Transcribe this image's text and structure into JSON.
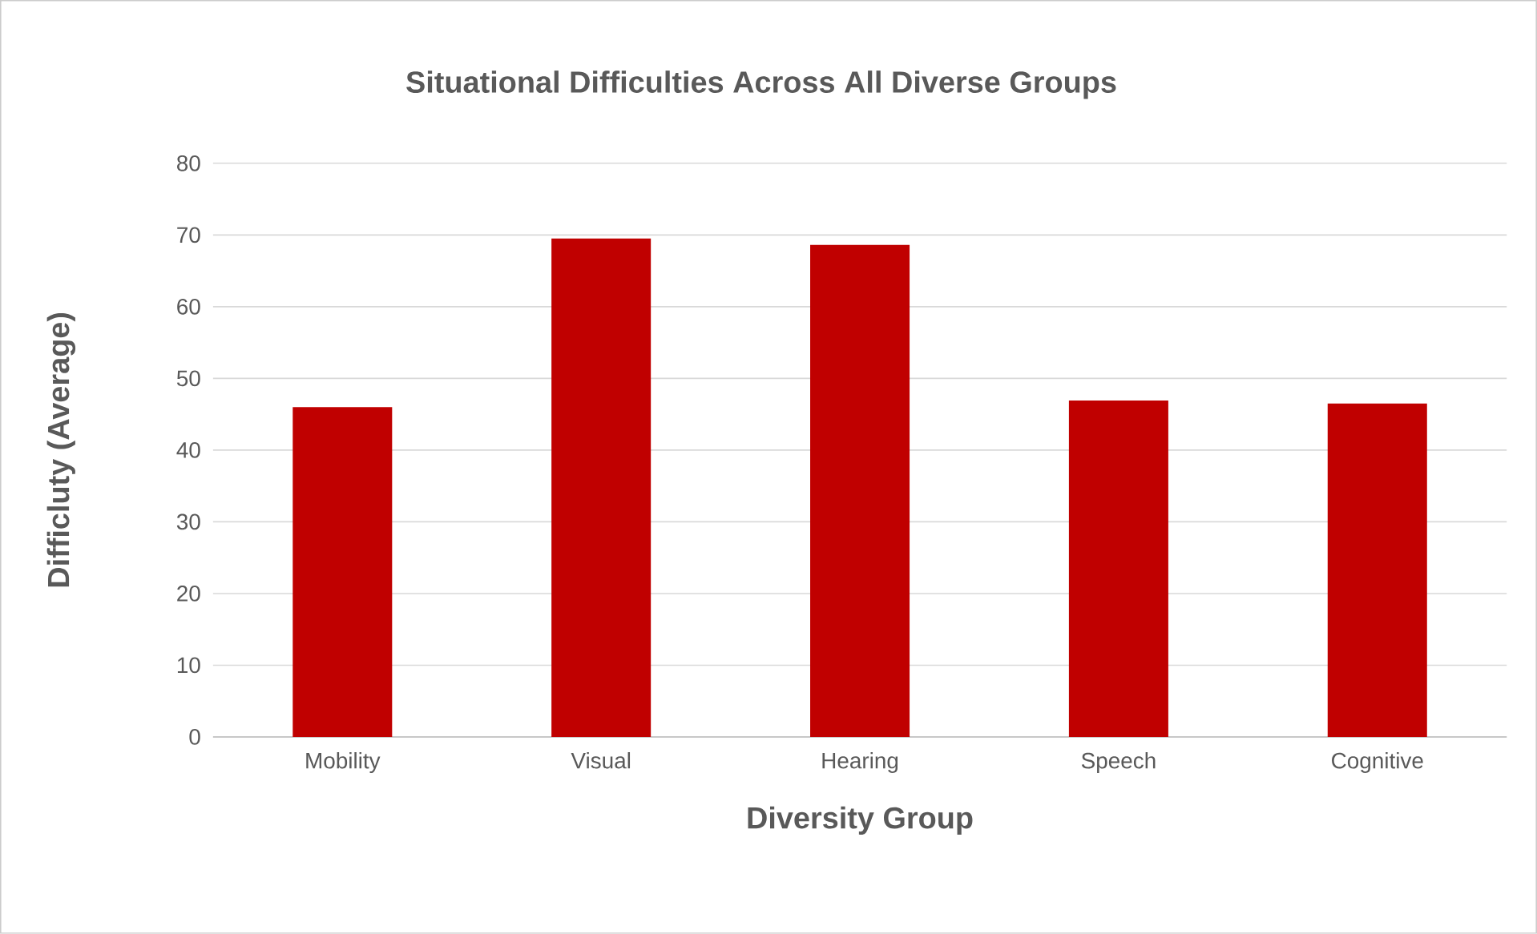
{
  "chart_data": {
    "type": "bar",
    "title": "Situational Difficulties Across All Diverse Groups",
    "xlabel": "Diversity Group",
    "ylabel": "Difficluty (Average)",
    "categories": [
      "Mobility",
      "Visual",
      "Hearing",
      "Speech",
      "Cognitive"
    ],
    "values": [
      46.0,
      69.5,
      68.6,
      46.9,
      46.5
    ],
    "color": "#c00000",
    "ylim": [
      0,
      80
    ],
    "yticks": [
      0,
      10,
      20,
      30,
      40,
      50,
      60,
      70,
      80
    ],
    "grid": "y"
  }
}
